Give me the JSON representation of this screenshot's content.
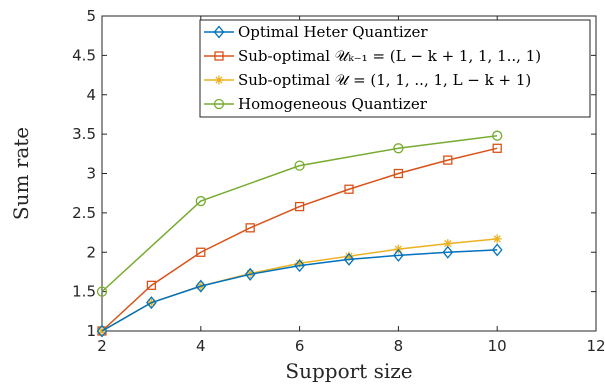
{
  "chart_data": {
    "type": "line",
    "title": "",
    "xlabel": "Support size",
    "ylabel": "Sum rate",
    "xlim": [
      2,
      12
    ],
    "ylim": [
      1,
      5
    ],
    "xticks": [
      2,
      4,
      6,
      8,
      10,
      12
    ],
    "yticks": [
      1,
      1.5,
      2,
      2.5,
      3,
      3.5,
      4,
      4.5,
      5
    ],
    "xtick_labels": [
      "2",
      "4",
      "6",
      "8",
      "10",
      "12"
    ],
    "ytick_labels": [
      "1",
      "1.5",
      "2",
      "2.5",
      "3",
      "3.5",
      "4",
      "4.5",
      "5"
    ],
    "grid": false,
    "legend_position": "top-right",
    "series": [
      {
        "name": "Optimal Heter Quantizer",
        "marker": "diamond",
        "color": "#0072BD",
        "x": [
          2,
          3,
          4,
          5,
          6,
          7,
          8,
          9,
          10
        ],
        "y": [
          1.0,
          1.36,
          1.57,
          1.72,
          1.83,
          1.91,
          1.96,
          2.0,
          2.03
        ]
      },
      {
        "name": "Sub-optimal 𝒰ₖ₋₁ = (L − k + 1, 1, 1.., 1)",
        "marker": "square",
        "color": "#D95319",
        "x": [
          2,
          3,
          4,
          5,
          6,
          7,
          8,
          9,
          10
        ],
        "y": [
          1.0,
          1.58,
          2.0,
          2.31,
          2.58,
          2.8,
          3.0,
          3.17,
          3.32
        ]
      },
      {
        "name": "Sub-optimal 𝒰 = (1, 1, .., 1, L − k + 1)",
        "marker": "asterisk",
        "color": "#EDB120",
        "x": [
          2,
          3,
          4,
          5,
          6,
          7,
          8,
          9,
          10
        ],
        "y": [
          1.0,
          1.36,
          1.57,
          1.73,
          1.86,
          1.95,
          2.04,
          2.11,
          2.17
        ]
      },
      {
        "name": "Homogeneous Quantizer",
        "marker": "circle",
        "color": "#77AC30",
        "x": [
          2,
          4,
          6,
          8,
          10
        ],
        "y": [
          1.5,
          2.65,
          3.1,
          3.32,
          3.48
        ]
      }
    ]
  }
}
